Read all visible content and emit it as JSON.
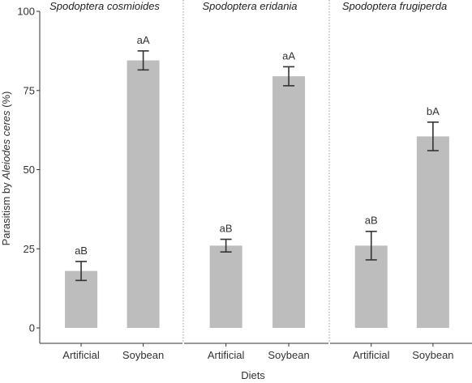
{
  "colors": {
    "bar": "#bdbdbd",
    "axis": "#333333",
    "error_bar": "#333333",
    "panel_divider": "#999999"
  },
  "chart_data": {
    "type": "bar",
    "xlabel": "Diets",
    "ylabel_prefix": "Parasitism by ",
    "ylabel_italic": "Aleiodes ceres",
    "ylabel_suffix": " (%)",
    "ylim": [
      0,
      100
    ],
    "yticks": [
      0,
      25,
      50,
      75,
      100
    ],
    "categories": [
      "Artificial",
      "Soybean"
    ],
    "grid": false,
    "panels": [
      {
        "title": "Spodoptera cosmioides",
        "values": [
          18,
          84.5
        ],
        "error_low": [
          15,
          81.5
        ],
        "error_high": [
          21,
          87.5
        ],
        "labels": [
          "aB",
          "aA"
        ]
      },
      {
        "title": "Spodoptera eridania",
        "values": [
          26,
          79.5
        ],
        "error_low": [
          24,
          76.5
        ],
        "error_high": [
          28,
          82.5
        ],
        "labels": [
          "aB",
          "aA"
        ]
      },
      {
        "title": "Spodoptera frugiperda",
        "values": [
          26,
          60.5
        ],
        "error_low": [
          21.5,
          56
        ],
        "error_high": [
          30.5,
          65
        ],
        "labels": [
          "aB",
          "bA"
        ]
      }
    ]
  }
}
